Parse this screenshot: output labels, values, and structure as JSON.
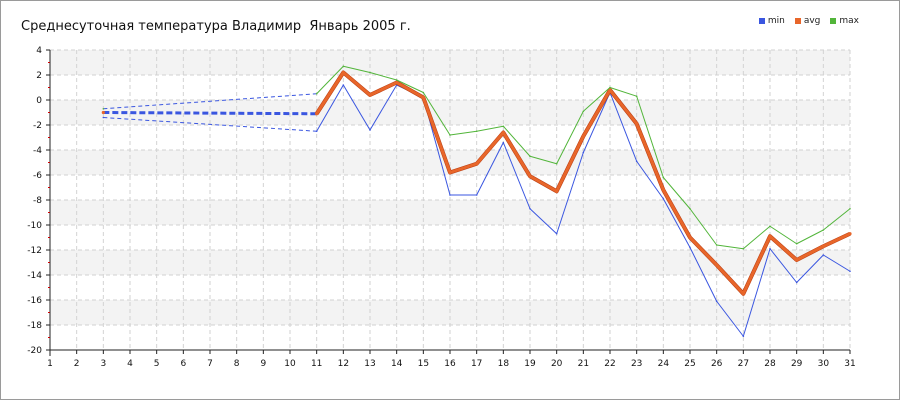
{
  "chart_data": {
    "type": "line",
    "title": "Среднесуточная температура Владимир  Январь 2005 г.",
    "xlabel": "",
    "ylabel": "",
    "x": [
      1,
      2,
      3,
      4,
      5,
      6,
      7,
      8,
      9,
      10,
      11,
      12,
      13,
      14,
      15,
      16,
      17,
      18,
      19,
      20,
      21,
      22,
      23,
      24,
      25,
      26,
      27,
      28,
      29,
      30,
      31
    ],
    "xticks": [
      "1",
      "2",
      "3",
      "4",
      "5",
      "6",
      "7",
      "8",
      "9",
      "10",
      "11",
      "12",
      "13",
      "14",
      "15",
      "16",
      "17",
      "18",
      "19",
      "20",
      "21",
      "22",
      "23",
      "24",
      "25",
      "26",
      "27",
      "28",
      "29",
      "30",
      "31"
    ],
    "ylim": [
      -20,
      4
    ],
    "yticks": [
      "4",
      "2",
      "0",
      "-2",
      "-4",
      "-6",
      "-8",
      "-10",
      "-12",
      "-14",
      "-16",
      "-18",
      "-20"
    ],
    "grid": true,
    "legend_position": "top-right",
    "interpolated_range": [
      3,
      11
    ],
    "series": [
      {
        "name": "min",
        "color": "#3a56e0",
        "values": [
          null,
          null,
          -1.4,
          null,
          null,
          null,
          null,
          null,
          null,
          null,
          -2.5,
          1.2,
          -2.4,
          1.2,
          0.2,
          -7.6,
          -7.6,
          -3.4,
          -8.7,
          -10.7,
          -4.2,
          0.6,
          -4.9,
          -7.9,
          -11.8,
          -16.1,
          -18.9,
          -11.9,
          -14.6,
          -12.4,
          -13.7
        ]
      },
      {
        "name": "avg",
        "color": "#e8662a",
        "values": [
          null,
          null,
          -1.0,
          null,
          null,
          null,
          null,
          null,
          null,
          null,
          -1.1,
          2.2,
          0.4,
          1.4,
          0.2,
          -5.8,
          -5.1,
          -2.6,
          -6.1,
          -7.3,
          -2.9,
          0.8,
          -1.9,
          -7.2,
          -11.0,
          -13.2,
          -15.5,
          -10.9,
          -12.8,
          -11.7,
          -10.7
        ]
      },
      {
        "name": "max",
        "color": "#52b53a",
        "values": [
          null,
          null,
          -0.7,
          null,
          null,
          null,
          null,
          null,
          null,
          null,
          0.5,
          2.7,
          2.2,
          1.6,
          0.6,
          -2.8,
          -2.5,
          -2.1,
          -4.5,
          -5.1,
          -0.9,
          1.0,
          0.3,
          -6.2,
          -8.7,
          -11.6,
          -11.9,
          -10.1,
          -11.5,
          -10.4,
          -8.7
        ]
      }
    ]
  }
}
